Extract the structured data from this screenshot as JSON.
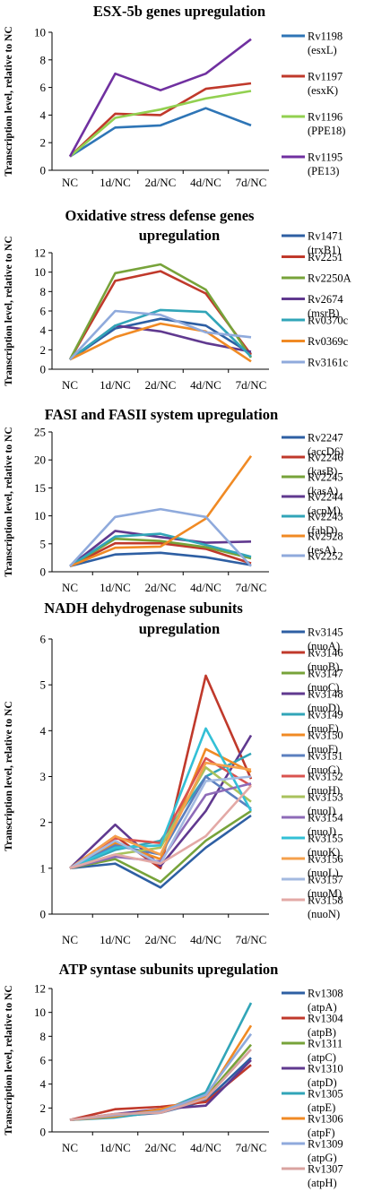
{
  "chart_data": [
    {
      "type": "line",
      "title": "ESX-5b genes upregulation",
      "ylabel": "Transcription level, relative to NC",
      "categories": [
        "NC",
        "1d/NC",
        "2d/NC",
        "4d/NC",
        "7d/NC"
      ],
      "ylim": [
        0,
        10
      ],
      "yticks": [
        0,
        2,
        4,
        6,
        8,
        10
      ],
      "grid": false,
      "legend_position": "right",
      "series": [
        {
          "name": "Rv1198",
          "sub": "(esxL)",
          "color": "#2e75b6",
          "values": [
            1,
            3.1,
            3.25,
            4.5,
            3.25
          ]
        },
        {
          "name": "Rv1197",
          "sub": "(esxK)",
          "color": "#c0392b",
          "values": [
            1,
            4.1,
            4.0,
            5.9,
            6.3
          ]
        },
        {
          "name": "Rv1196",
          "sub": "(PPE18)",
          "color": "#92d050",
          "values": [
            1,
            3.8,
            4.4,
            5.2,
            5.75
          ]
        },
        {
          "name": "Rv1195",
          "sub": "(PE13)",
          "color": "#7030a0",
          "values": [
            1,
            7.0,
            5.8,
            7.0,
            9.5
          ]
        }
      ]
    },
    {
      "type": "line",
      "title": "Oxidative stress defense genes upregulation",
      "ylabel": "Transcription level, relative to NC",
      "categories": [
        "NC",
        "1d/NC",
        "2d/NC",
        "4d/NC",
        "7d/NC"
      ],
      "ylim": [
        0,
        12
      ],
      "yticks": [
        0,
        2,
        4,
        6,
        8,
        10,
        12
      ],
      "grid": false,
      "legend_position": "right",
      "series": [
        {
          "name": "Rv1471",
          "sub": "(trxB1)",
          "color": "#2e5fa3",
          "values": [
            1,
            4.2,
            5.2,
            4.5,
            1.6
          ]
        },
        {
          "name": "Rv2251",
          "sub": "",
          "color": "#c0392b",
          "values": [
            1,
            9.1,
            10.1,
            7.8,
            1.5
          ]
        },
        {
          "name": "Rv2250A",
          "sub": "",
          "color": "#77a33a",
          "values": [
            1,
            9.9,
            10.8,
            8.2,
            1.2
          ]
        },
        {
          "name": "Rv2674",
          "sub": "(msrB)",
          "color": "#60398f",
          "values": [
            1,
            4.5,
            3.9,
            2.7,
            1.8
          ]
        },
        {
          "name": "Rv0370c",
          "sub": "",
          "color": "#31a5b8",
          "values": [
            1,
            4.5,
            6.1,
            5.9,
            1.3
          ]
        },
        {
          "name": "Rv0369c",
          "sub": "",
          "color": "#f08a24",
          "values": [
            1,
            3.3,
            4.7,
            3.9,
            0.8
          ]
        },
        {
          "name": "Rv3161c",
          "sub": "",
          "color": "#8faadc",
          "values": [
            1,
            6.0,
            5.6,
            3.8,
            3.3
          ]
        }
      ]
    },
    {
      "type": "line",
      "title": "FASI and FASII system upregulation",
      "ylabel": "Transcription level, relative to NC",
      "categories": [
        "NC",
        "1d/NC",
        "2d/NC",
        "4d/NC",
        "7d/NC"
      ],
      "ylim": [
        0,
        25
      ],
      "yticks": [
        0,
        5,
        10,
        15,
        20,
        25
      ],
      "grid": false,
      "legend_position": "right",
      "series": [
        {
          "name": "Rv2247",
          "sub": "(accD6)",
          "color": "#2e5fa3",
          "values": [
            1,
            3.1,
            3.4,
            2.6,
            1.2
          ]
        },
        {
          "name": "Rv2246",
          "sub": "(kasB)",
          "color": "#c0392b",
          "values": [
            1,
            5.1,
            5.1,
            4.1,
            1.5
          ]
        },
        {
          "name": "Rv2245",
          "sub": "(kasA)",
          "color": "#77a33a",
          "values": [
            1,
            5.9,
            5.5,
            4.4,
            2.4
          ]
        },
        {
          "name": "Rv2244",
          "sub": "(acpM)",
          "color": "#60398f",
          "values": [
            1,
            7.3,
            6.2,
            5.2,
            5.4
          ]
        },
        {
          "name": "Rv2243",
          "sub": "(fabD)",
          "color": "#31a5b8",
          "values": [
            1,
            6.3,
            6.8,
            4.8,
            2.7
          ]
        },
        {
          "name": "Rv2928",
          "sub": "(tesA)",
          "color": "#f08a24",
          "values": [
            1,
            4.3,
            4.5,
            9.5,
            20.7
          ]
        },
        {
          "name": "Rv2252",
          "sub": "",
          "color": "#8faadc",
          "values": [
            1,
            9.8,
            11.2,
            9.8,
            1.0
          ]
        }
      ]
    },
    {
      "type": "line",
      "title": "NADH dehydrogenase subunits upregulation",
      "ylabel": "Transcription level, relative to NC",
      "categories": [
        "NC",
        "1d/NC",
        "2d/NC",
        "4d/NC",
        "7d/NC"
      ],
      "ylim": [
        0,
        6
      ],
      "yticks": [
        0,
        1,
        2,
        3,
        4,
        5,
        6
      ],
      "grid": false,
      "legend_position": "right",
      "series": [
        {
          "name": "Rv3145",
          "sub": "(nuoA)",
          "color": "#2e5fa3",
          "values": [
            1,
            1.1,
            0.58,
            1.45,
            2.15
          ]
        },
        {
          "name": "Rv3146",
          "sub": "(nuoB)",
          "color": "#c0392b",
          "values": [
            1,
            1.7,
            1.0,
            5.2,
            2.95
          ]
        },
        {
          "name": "Rv3147",
          "sub": "(nuoC)",
          "color": "#77a33a",
          "values": [
            1,
            1.2,
            0.7,
            1.6,
            2.25
          ]
        },
        {
          "name": "Rv3148",
          "sub": "(nuoD)",
          "color": "#60398f",
          "values": [
            1,
            1.95,
            1.05,
            2.25,
            3.9
          ]
        },
        {
          "name": "Rv3149",
          "sub": "(nuoE)",
          "color": "#31a5b8",
          "values": [
            1,
            1.4,
            1.6,
            3.0,
            3.5
          ]
        },
        {
          "name": "Rv3150",
          "sub": "(nuoF)",
          "color": "#f08a24",
          "values": [
            1,
            1.55,
            1.2,
            3.6,
            3.1
          ]
        },
        {
          "name": "Rv3151",
          "sub": "(nuoG)",
          "color": "#5b7fbf",
          "values": [
            1,
            1.5,
            1.3,
            3.0,
            2.3
          ]
        },
        {
          "name": "Rv3152",
          "sub": "(nuoH)",
          "color": "#d9534f",
          "values": [
            1,
            1.65,
            1.55,
            3.4,
            2.8
          ]
        },
        {
          "name": "Rv3153",
          "sub": "(nuoI)",
          "color": "#a9c25d",
          "values": [
            1,
            1.3,
            1.45,
            3.2,
            2.45
          ]
        },
        {
          "name": "Rv3154",
          "sub": "(nuoJ)",
          "color": "#8e6bb8",
          "values": [
            1,
            1.25,
            1.15,
            2.6,
            2.85
          ]
        },
        {
          "name": "Rv3155",
          "sub": "(nuoK)",
          "color": "#33c0d6",
          "values": [
            1,
            1.45,
            1.5,
            4.05,
            2.25
          ]
        },
        {
          "name": "Rv3156",
          "sub": "(nuoL)",
          "color": "#f5a04c",
          "values": [
            1,
            1.7,
            1.3,
            3.3,
            3.15
          ]
        },
        {
          "name": "Rv3157",
          "sub": "(nuoM)",
          "color": "#a3b9e0",
          "values": [
            1,
            1.6,
            1.1,
            2.9,
            3.0
          ]
        },
        {
          "name": "Rv3158",
          "sub": "(nuoN)",
          "color": "#e3a9a6",
          "values": [
            1,
            1.3,
            1.1,
            1.7,
            2.8
          ]
        }
      ]
    },
    {
      "type": "line",
      "title": "ATP syntase subunits upregulation",
      "ylabel": "Transcription level, relative to NC",
      "categories": [
        "NC",
        "1d/NC",
        "2d/NC",
        "4d/NC",
        "7d/NC"
      ],
      "ylim": [
        0,
        12
      ],
      "yticks": [
        0,
        2,
        4,
        6,
        8,
        10,
        12
      ],
      "grid": false,
      "legend_position": "right",
      "series": [
        {
          "name": "Rv1308",
          "sub": "(atpA)",
          "color": "#2e5fa3",
          "values": [
            1,
            1.3,
            1.6,
            2.6,
            6.2
          ]
        },
        {
          "name": "Rv1304",
          "sub": "(atpB)",
          "color": "#c0392b",
          "values": [
            1,
            1.9,
            2.1,
            2.5,
            5.6
          ]
        },
        {
          "name": "Rv1311",
          "sub": "(atpC)",
          "color": "#77a33a",
          "values": [
            1,
            1.4,
            1.8,
            2.9,
            7.3
          ]
        },
        {
          "name": "Rv1310",
          "sub": "(atpD)",
          "color": "#60398f",
          "values": [
            1,
            1.5,
            1.9,
            2.2,
            6.0
          ]
        },
        {
          "name": "Rv1305",
          "sub": "(atpE)",
          "color": "#31a5b8",
          "values": [
            1,
            1.2,
            1.7,
            3.3,
            10.8
          ]
        },
        {
          "name": "Rv1306",
          "sub": "(atpF)",
          "color": "#f08a24",
          "values": [
            1,
            1.3,
            1.9,
            2.9,
            8.9
          ]
        },
        {
          "name": "Rv1309",
          "sub": "(atpG)",
          "color": "#8faadc",
          "values": [
            1,
            1.4,
            1.7,
            3.1,
            8.2
          ]
        },
        {
          "name": "Rv1307",
          "sub": "(atpH)",
          "color": "#d9a3a0",
          "values": [
            1,
            1.5,
            1.6,
            2.8,
            6.9
          ]
        }
      ]
    }
  ]
}
